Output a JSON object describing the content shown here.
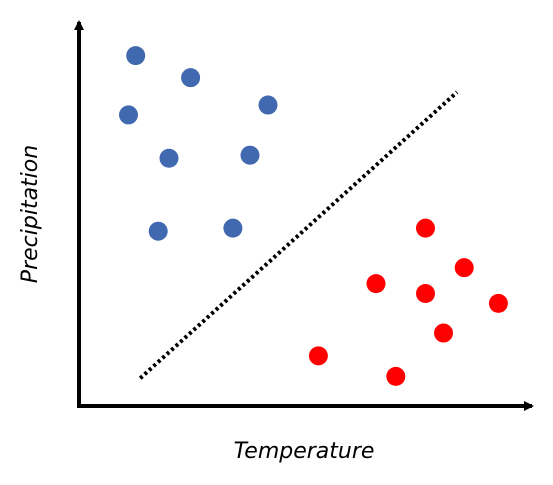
{
  "chart_data": {
    "type": "scatter",
    "xlabel": "Temperature",
    "ylabel": "Precipitation",
    "xlim": [
      0,
      100
    ],
    "ylim": [
      0,
      100
    ],
    "grid": false,
    "series": [
      {
        "color": "#4169b0",
        "points": [
          {
            "x": 12.6,
            "y": 92.2
          },
          {
            "x": 24.8,
            "y": 86.4
          },
          {
            "x": 11.0,
            "y": 76.6
          },
          {
            "x": 42.0,
            "y": 79.2
          },
          {
            "x": 20.0,
            "y": 65.2
          },
          {
            "x": 38.0,
            "y": 66.0
          },
          {
            "x": 17.6,
            "y": 46.0
          },
          {
            "x": 34.2,
            "y": 46.8
          }
        ]
      },
      {
        "color": "#ff0000",
        "points": [
          {
            "x": 77.0,
            "y": 46.8
          },
          {
            "x": 85.6,
            "y": 36.4
          },
          {
            "x": 66.0,
            "y": 32.2
          },
          {
            "x": 77.0,
            "y": 29.6
          },
          {
            "x": 93.2,
            "y": 27.0
          },
          {
            "x": 81.0,
            "y": 19.2
          },
          {
            "x": 53.2,
            "y": 13.2
          },
          {
            "x": 70.4,
            "y": 7.8
          }
        ]
      }
    ],
    "boundary": {
      "style": "dotted",
      "color": "#000000",
      "from": {
        "x": 13.6,
        "y": 7.3
      },
      "to": {
        "x": 84.0,
        "y": 82.6
      }
    }
  }
}
